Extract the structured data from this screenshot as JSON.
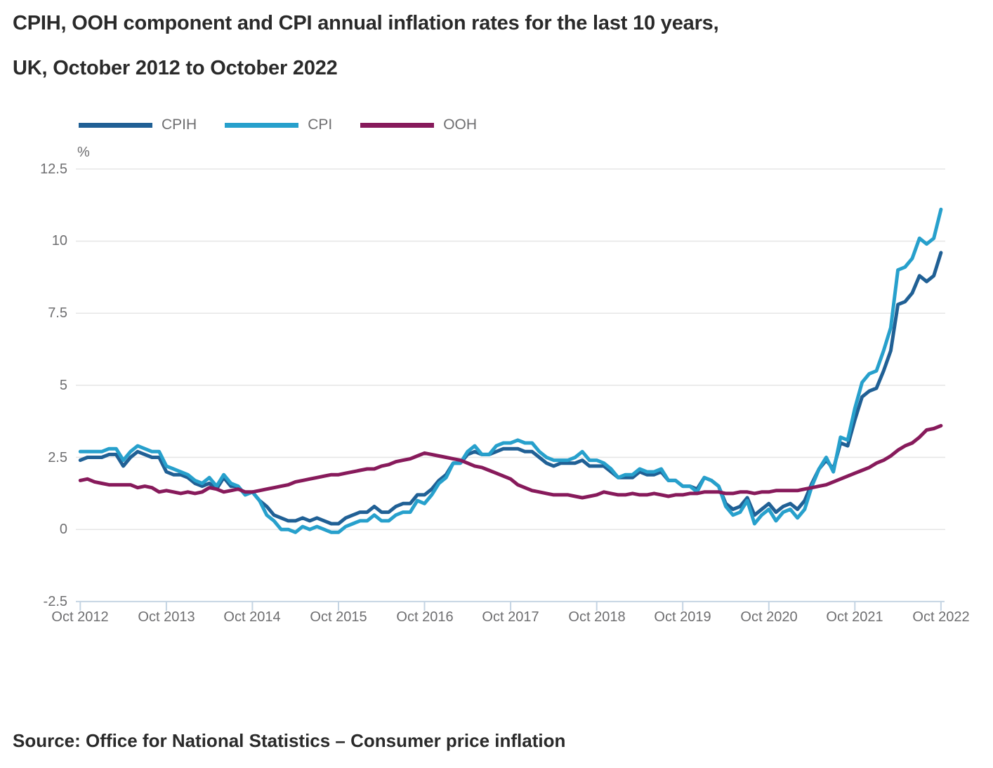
{
  "title": {
    "line1": "CPIH, OOH component and CPI annual inflation rates for the last 10 years,",
    "line2": "UK, October 2012 to October 2022"
  },
  "source": "Source: Office for National Statistics – Consumer price inflation",
  "legend": [
    {
      "label": "CPIH",
      "color": "#206095"
    },
    {
      "label": "CPI",
      "color": "#27A0CC"
    },
    {
      "label": "OOH",
      "color": "#871A5B"
    }
  ],
  "colors": {
    "cpih": "#206095",
    "cpi": "#27A0CC",
    "ooh": "#871A5B",
    "gridline": "#e6e6e6",
    "axis_line": "#c4d4e3",
    "tick_text": "#6e6e70",
    "heading_text": "#2a2a2a"
  },
  "chart_data": {
    "type": "line",
    "title": "CPIH, OOH component and CPI annual inflation rates for the last 10 years, UK, October 2012 to October 2022",
    "unit_label": "%",
    "frequency": "monthly",
    "x_range": [
      "Oct 2012",
      "Oct 2022"
    ],
    "x_tick_labels": [
      "Oct 2012",
      "Oct 2013",
      "Oct 2014",
      "Oct 2015",
      "Oct 2016",
      "Oct 2017",
      "Oct 2018",
      "Oct 2019",
      "Oct 2020",
      "Oct 2021",
      "Oct 2022"
    ],
    "y_ticks": [
      12.5,
      10,
      7.5,
      5,
      2.5,
      0,
      -2.5
    ],
    "y_tick_labels": [
      "12.5",
      "10",
      "7.5",
      "5",
      "2.5",
      "0",
      "-2.5"
    ],
    "ylim": [
      -2.5,
      12.5
    ],
    "grid": "horizontal",
    "legend_position": "top-left",
    "points_per_series": 121,
    "series": [
      {
        "name": "CPIH",
        "color": "#206095",
        "values": [
          2.4,
          2.5,
          2.5,
          2.5,
          2.6,
          2.6,
          2.2,
          2.5,
          2.7,
          2.6,
          2.5,
          2.5,
          2.0,
          1.9,
          1.9,
          1.8,
          1.6,
          1.5,
          1.6,
          1.4,
          1.8,
          1.5,
          1.5,
          1.2,
          1.3,
          1.0,
          0.8,
          0.5,
          0.4,
          0.3,
          0.3,
          0.4,
          0.3,
          0.4,
          0.3,
          0.2,
          0.2,
          0.4,
          0.5,
          0.6,
          0.6,
          0.8,
          0.6,
          0.6,
          0.8,
          0.9,
          0.9,
          1.2,
          1.2,
          1.4,
          1.7,
          1.9,
          2.3,
          2.3,
          2.6,
          2.7,
          2.6,
          2.6,
          2.7,
          2.8,
          2.8,
          2.8,
          2.7,
          2.7,
          2.5,
          2.3,
          2.2,
          2.3,
          2.3,
          2.3,
          2.4,
          2.2,
          2.2,
          2.2,
          2.0,
          1.8,
          1.8,
          1.8,
          2.0,
          1.9,
          1.9,
          2.0,
          1.7,
          1.7,
          1.5,
          1.5,
          1.4,
          1.8,
          1.7,
          1.5,
          0.9,
          0.7,
          0.8,
          1.1,
          0.5,
          0.7,
          0.9,
          0.6,
          0.8,
          0.9,
          0.7,
          1.0,
          1.6,
          2.1,
          2.4,
          2.1,
          3.0,
          2.9,
          3.8,
          4.6,
          4.8,
          4.9,
          5.5,
          6.2,
          7.8,
          7.9,
          8.2,
          8.8,
          8.6,
          8.8,
          9.6
        ]
      },
      {
        "name": "CPI",
        "color": "#27A0CC",
        "values": [
          2.7,
          2.7,
          2.7,
          2.7,
          2.8,
          2.8,
          2.4,
          2.7,
          2.9,
          2.8,
          2.7,
          2.7,
          2.2,
          2.1,
          2.0,
          1.9,
          1.7,
          1.6,
          1.8,
          1.5,
          1.9,
          1.6,
          1.5,
          1.2,
          1.3,
          1.0,
          0.5,
          0.3,
          0.0,
          0.0,
          -0.1,
          0.1,
          0.0,
          0.1,
          0.0,
          -0.1,
          -0.1,
          0.1,
          0.2,
          0.3,
          0.3,
          0.5,
          0.3,
          0.3,
          0.5,
          0.6,
          0.6,
          1.0,
          0.9,
          1.2,
          1.6,
          1.8,
          2.3,
          2.3,
          2.7,
          2.9,
          2.6,
          2.6,
          2.9,
          3.0,
          3.0,
          3.1,
          3.0,
          3.0,
          2.7,
          2.5,
          2.4,
          2.4,
          2.4,
          2.5,
          2.7,
          2.4,
          2.4,
          2.3,
          2.1,
          1.8,
          1.9,
          1.9,
          2.1,
          2.0,
          2.0,
          2.1,
          1.7,
          1.7,
          1.5,
          1.5,
          1.3,
          1.8,
          1.7,
          1.5,
          0.8,
          0.5,
          0.6,
          1.0,
          0.2,
          0.5,
          0.7,
          0.3,
          0.6,
          0.7,
          0.4,
          0.7,
          1.5,
          2.1,
          2.5,
          2.0,
          3.2,
          3.1,
          4.2,
          5.1,
          5.4,
          5.5,
          6.2,
          7.0,
          9.0,
          9.1,
          9.4,
          10.1,
          9.9,
          10.1,
          11.1
        ]
      },
      {
        "name": "OOH",
        "color": "#871A5B",
        "values": [
          1.7,
          1.75,
          1.65,
          1.6,
          1.55,
          1.55,
          1.55,
          1.55,
          1.45,
          1.5,
          1.45,
          1.3,
          1.35,
          1.3,
          1.25,
          1.3,
          1.25,
          1.3,
          1.45,
          1.4,
          1.3,
          1.35,
          1.4,
          1.3,
          1.3,
          1.35,
          1.4,
          1.45,
          1.5,
          1.55,
          1.65,
          1.7,
          1.75,
          1.8,
          1.85,
          1.9,
          1.9,
          1.95,
          2.0,
          2.05,
          2.1,
          2.1,
          2.2,
          2.25,
          2.35,
          2.4,
          2.45,
          2.55,
          2.65,
          2.6,
          2.55,
          2.5,
          2.45,
          2.4,
          2.3,
          2.2,
          2.15,
          2.05,
          1.95,
          1.85,
          1.75,
          1.55,
          1.45,
          1.35,
          1.3,
          1.25,
          1.2,
          1.2,
          1.2,
          1.15,
          1.1,
          1.15,
          1.2,
          1.3,
          1.25,
          1.2,
          1.2,
          1.25,
          1.2,
          1.2,
          1.25,
          1.2,
          1.15,
          1.2,
          1.2,
          1.25,
          1.25,
          1.3,
          1.3,
          1.3,
          1.25,
          1.25,
          1.3,
          1.3,
          1.25,
          1.3,
          1.3,
          1.35,
          1.35,
          1.35,
          1.35,
          1.4,
          1.45,
          1.5,
          1.55,
          1.65,
          1.75,
          1.85,
          1.95,
          2.05,
          2.15,
          2.3,
          2.4,
          2.55,
          2.75,
          2.9,
          3.0,
          3.2,
          3.45,
          3.5,
          3.6
        ]
      }
    ]
  }
}
